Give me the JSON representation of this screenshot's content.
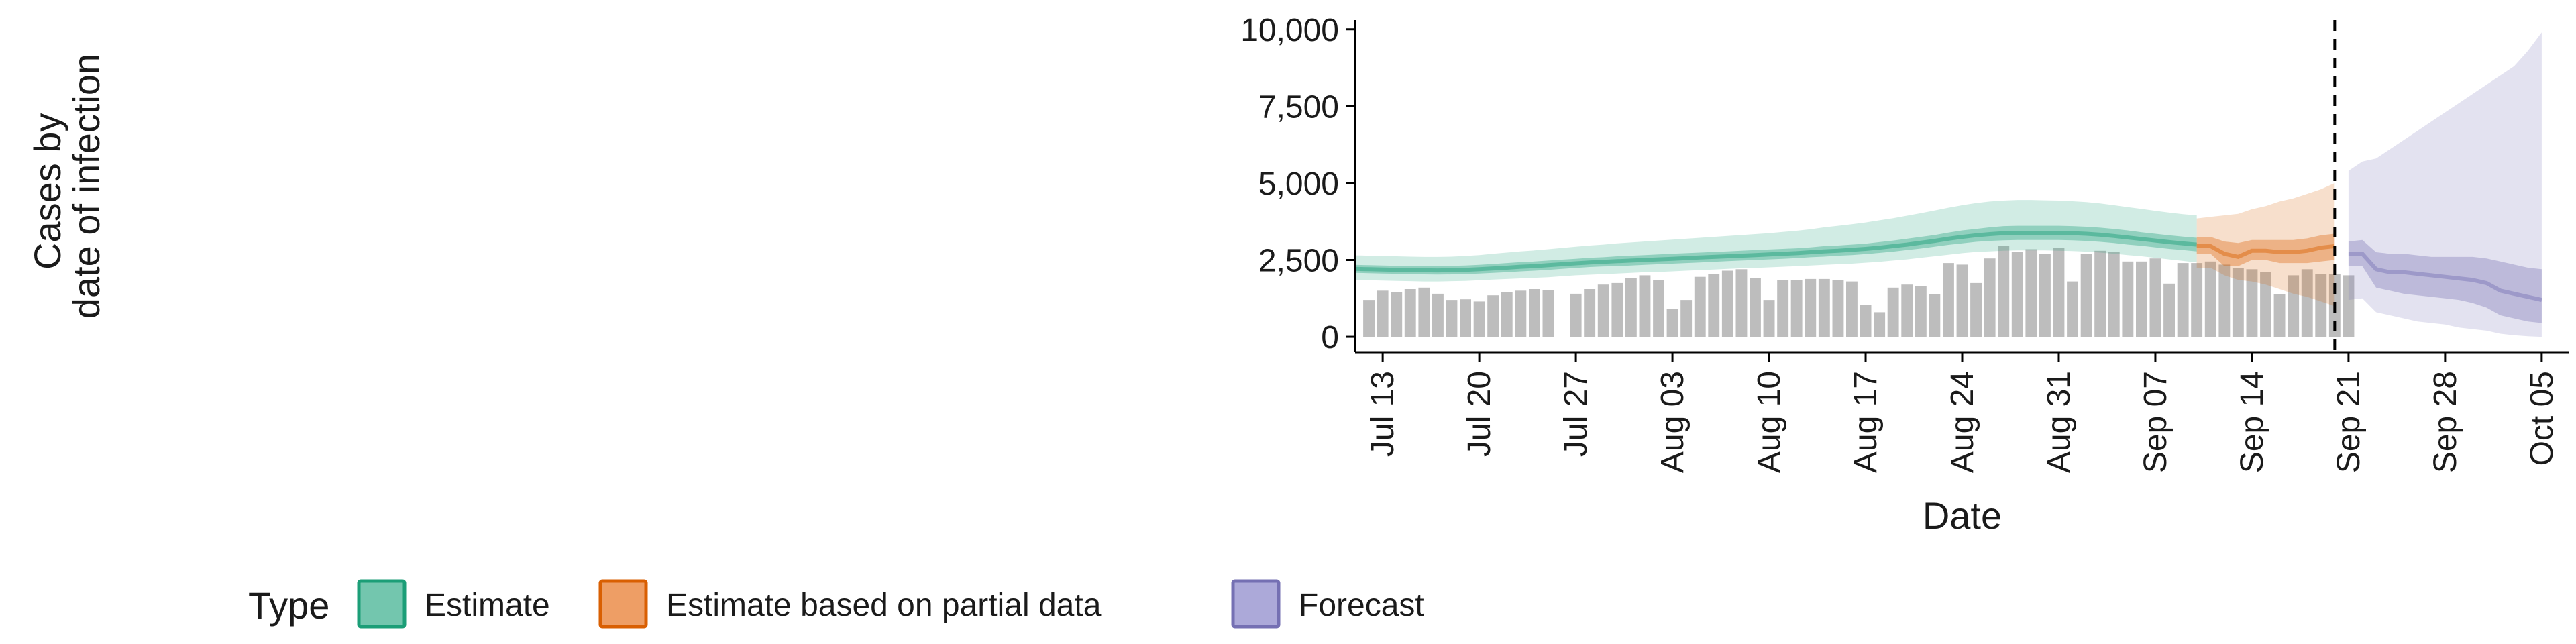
{
  "chart_data": {
    "type": "bar",
    "title": "",
    "xlabel": "Date",
    "ylabel_lines": [
      "Cases by",
      "date of infection"
    ],
    "x_start": "2020-07-11",
    "x_end": "2020-10-07",
    "x_ticks": [
      {
        "date": "2020-07-13",
        "label": "Jul 13"
      },
      {
        "date": "2020-07-20",
        "label": "Jul 20"
      },
      {
        "date": "2020-07-27",
        "label": "Jul 27"
      },
      {
        "date": "2020-08-03",
        "label": "Aug 03"
      },
      {
        "date": "2020-08-10",
        "label": "Aug 10"
      },
      {
        "date": "2020-08-17",
        "label": "Aug 17"
      },
      {
        "date": "2020-08-24",
        "label": "Aug 24"
      },
      {
        "date": "2020-08-31",
        "label": "Aug 31"
      },
      {
        "date": "2020-09-07",
        "label": "Sep 07"
      },
      {
        "date": "2020-09-14",
        "label": "Sep 14"
      },
      {
        "date": "2020-09-21",
        "label": "Sep 21"
      },
      {
        "date": "2020-09-28",
        "label": "Sep 28"
      },
      {
        "date": "2020-10-05",
        "label": "Oct 05"
      }
    ],
    "y_ticks": [
      {
        "value": 0,
        "label": "0"
      },
      {
        "value": 2500,
        "label": "2,500"
      },
      {
        "value": 5000,
        "label": "5,000"
      },
      {
        "value": 7500,
        "label": "7,500"
      },
      {
        "value": 10000,
        "label": "10,000"
      }
    ],
    "ylim": [
      -500,
      10300
    ],
    "grid": false,
    "vline_date": "2020-09-20",
    "bars": {
      "start": "2020-07-12",
      "values": [
        1200,
        1500,
        1450,
        1550,
        1600,
        1400,
        1200,
        1220,
        1150,
        1350,
        1450,
        1500,
        1550,
        1520,
        null,
        1400,
        1550,
        1700,
        1750,
        1900,
        2000,
        1850,
        900,
        1200,
        1950,
        2050,
        2150,
        2200,
        1900,
        1200,
        1850,
        1850,
        1880,
        1880,
        1850,
        1800,
        1030,
        800,
        1600,
        1700,
        1650,
        1380,
        2400,
        2350,
        1750,
        2550,
        2950,
        2750,
        2850,
        2700,
        2900,
        1800,
        2700,
        2800,
        2750,
        2450,
        2450,
        2550,
        1730,
        2400,
        2400,
        2450,
        2350,
        2250,
        2200,
        2100,
        1380,
        2000,
        2200,
        2050,
        2050,
        2000
      ]
    },
    "series": [
      {
        "name": "Estimate",
        "color": "#1b9e77",
        "start": "2020-07-11",
        "median": [
          2210,
          2200,
          2190,
          2180,
          2170,
          2165,
          2160,
          2170,
          2180,
          2200,
          2225,
          2250,
          2280,
          2300,
          2330,
          2360,
          2390,
          2420,
          2440,
          2460,
          2480,
          2500,
          2520,
          2540,
          2560,
          2580,
          2600,
          2620,
          2640,
          2660,
          2680,
          2700,
          2720,
          2750,
          2780,
          2800,
          2830,
          2860,
          2900,
          2950,
          3000,
          3060,
          3120,
          3190,
          3250,
          3300,
          3340,
          3370,
          3380,
          3380,
          3380,
          3380,
          3370,
          3350,
          3320,
          3280,
          3230,
          3180,
          3130,
          3080,
          3040,
          3000
        ],
        "lower50": [
          2080,
          2070,
          2060,
          2050,
          2040,
          2030,
          2025,
          2030,
          2040,
          2060,
          2080,
          2100,
          2130,
          2150,
          2180,
          2210,
          2240,
          2270,
          2290,
          2300,
          2320,
          2340,
          2360,
          2380,
          2400,
          2420,
          2440,
          2460,
          2480,
          2500,
          2520,
          2540,
          2560,
          2590,
          2610,
          2640,
          2660,
          2690,
          2730,
          2770,
          2820,
          2870,
          2930,
          2990,
          3040,
          3090,
          3120,
          3140,
          3150,
          3150,
          3150,
          3150,
          3140,
          3120,
          3090,
          3050,
          3000,
          2960,
          2910,
          2860,
          2820,
          2780
        ],
        "upper50": [
          2340,
          2330,
          2320,
          2310,
          2300,
          2300,
          2300,
          2310,
          2320,
          2340,
          2370,
          2400,
          2430,
          2450,
          2480,
          2510,
          2540,
          2570,
          2590,
          2620,
          2640,
          2660,
          2680,
          2700,
          2720,
          2740,
          2760,
          2780,
          2800,
          2820,
          2840,
          2860,
          2880,
          2910,
          2950,
          2970,
          3000,
          3030,
          3080,
          3130,
          3190,
          3250,
          3310,
          3390,
          3460,
          3510,
          3560,
          3600,
          3610,
          3610,
          3610,
          3610,
          3600,
          3580,
          3550,
          3510,
          3460,
          3400,
          3350,
          3300,
          3260,
          3220
        ],
        "lower90": [
          1850,
          1840,
          1830,
          1820,
          1810,
          1800,
          1800,
          1810,
          1820,
          1840,
          1860,
          1880,
          1900,
          1920,
          1940,
          1970,
          2000,
          2020,
          2040,
          2060,
          2080,
          2100,
          2110,
          2130,
          2150,
          2170,
          2190,
          2210,
          2230,
          2240,
          2260,
          2280,
          2300,
          2320,
          2340,
          2360,
          2380,
          2410,
          2440,
          2480,
          2520,
          2570,
          2620,
          2670,
          2720,
          2760,
          2780,
          2800,
          2810,
          2810,
          2810,
          2800,
          2790,
          2770,
          2740,
          2700,
          2660,
          2620,
          2570,
          2520,
          2470,
          2420
        ],
        "upper90": [
          2650,
          2640,
          2630,
          2620,
          2610,
          2600,
          2600,
          2610,
          2630,
          2660,
          2700,
          2740,
          2780,
          2810,
          2850,
          2890,
          2930,
          2970,
          3000,
          3040,
          3070,
          3100,
          3130,
          3160,
          3190,
          3220,
          3250,
          3280,
          3310,
          3340,
          3370,
          3410,
          3450,
          3500,
          3560,
          3610,
          3660,
          3720,
          3790,
          3860,
          3940,
          4020,
          4110,
          4200,
          4280,
          4350,
          4400,
          4430,
          4450,
          4450,
          4440,
          4430,
          4410,
          4380,
          4340,
          4280,
          4220,
          4160,
          4100,
          4040,
          3990,
          3950
        ]
      },
      {
        "name": "Estimate based on partial data",
        "color": "#d95f02",
        "start": "2020-09-10",
        "median": [
          2950,
          2950,
          2700,
          2600,
          2800,
          2800,
          2750,
          2750,
          2800,
          2900,
          2950
        ],
        "lower50": [
          2700,
          2700,
          2300,
          2300,
          2500,
          2500,
          2400,
          2400,
          2400,
          2450,
          2500
        ],
        "upper50": [
          3250,
          3250,
          3100,
          3050,
          3150,
          3150,
          3150,
          3150,
          3200,
          3300,
          3350
        ],
        "lower90": [
          2250,
          2250,
          2000,
          1850,
          1800,
          1700,
          1550,
          1400,
          1300,
          1150,
          1000
        ],
        "upper90": [
          3850,
          3900,
          3950,
          4000,
          4150,
          4250,
          4400,
          4500,
          4650,
          4800,
          5000
        ]
      },
      {
        "name": "Forecast",
        "color": "#7570b3",
        "start": "2020-09-21",
        "median": [
          2700,
          2700,
          2200,
          2100,
          2100,
          2050,
          2000,
          1950,
          1900,
          1850,
          1750,
          1500,
          1400,
          1300,
          1200
        ],
        "lower50": [
          2300,
          2300,
          1600,
          1500,
          1400,
          1350,
          1300,
          1250,
          1200,
          1100,
          950,
          700,
          600,
          500,
          450
        ],
        "upper50": [
          3100,
          3150,
          2750,
          2700,
          2700,
          2650,
          2600,
          2600,
          2600,
          2600,
          2550,
          2450,
          2350,
          2250,
          2200
        ],
        "lower90": [
          1200,
          1250,
          800,
          700,
          600,
          500,
          450,
          400,
          300,
          250,
          200,
          100,
          50,
          20,
          0
        ],
        "upper90": [
          5400,
          5700,
          5800,
          6100,
          6400,
          6700,
          7000,
          7300,
          7600,
          7900,
          8200,
          8500,
          8800,
          9300,
          9900
        ]
      }
    ],
    "legend": {
      "title": "Type",
      "position": "bottom-left",
      "items": [
        {
          "label": "Estimate",
          "fill": "#73c6ae",
          "stroke": "#1b9e77"
        },
        {
          "label": "Estimate based on partial data",
          "fill": "#ee9e65",
          "stroke": "#d95f02"
        },
        {
          "label": "Forecast",
          "fill": "#aca9d9",
          "stroke": "#7570b3"
        }
      ]
    },
    "bar_color": "#bdbdbd"
  }
}
